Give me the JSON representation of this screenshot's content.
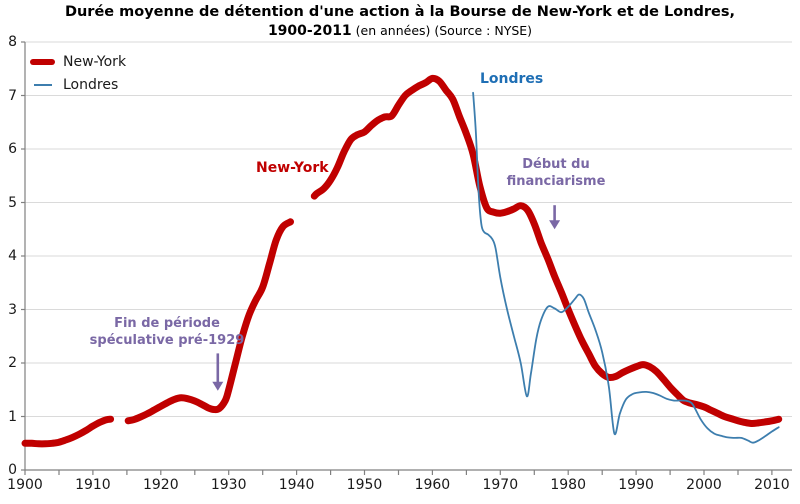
{
  "chart_data": {
    "type": "line",
    "title": "Durée moyenne de détention d'une action à la Bourse de New-York et de Londres,",
    "subtitle_bold": "1900-2011",
    "subtitle_rest": " (en années) (Source : NYSE)",
    "xlabel": "",
    "ylabel": "",
    "xlim": [
      1900,
      2011.5
    ],
    "ylim": [
      0,
      8
    ],
    "x_tick_interval": 5,
    "x_label_interval": 10,
    "grid": "horizontal-only",
    "legend_position": "top-left",
    "x_tick_labels": [
      "1900",
      "1910",
      "1920",
      "1930",
      "1940",
      "1950",
      "1960",
      "1970",
      "1980",
      "1990",
      "2000",
      "2010"
    ],
    "y_tick_labels": [
      "0",
      "1",
      "2",
      "3",
      "4",
      "5",
      "6",
      "7",
      "8"
    ],
    "colors": {
      "new_york": "#C00000",
      "londres_line": "#3D7EAE",
      "londres_label": "#1F6FB5",
      "annotation_purple": "#7A68A5",
      "grid": "#DADADA",
      "axis": "#808080",
      "tick_text": "#1A1A1A"
    },
    "series": [
      {
        "name": "New-York",
        "color": "#C00000",
        "stroke_width": 7,
        "segments": [
          [
            [
              1900,
              0.5
            ],
            [
              1901,
              0.5
            ],
            [
              1902,
              0.49
            ],
            [
              1903,
              0.49
            ],
            [
              1904,
              0.5
            ],
            [
              1905,
              0.52
            ],
            [
              1906,
              0.56
            ],
            [
              1907,
              0.61
            ],
            [
              1908,
              0.67
            ],
            [
              1909,
              0.74
            ],
            [
              1910,
              0.82
            ],
            [
              1911,
              0.89
            ],
            [
              1912,
              0.94
            ],
            [
              1912.6,
              0.95
            ]
          ],
          [
            [
              1915.2,
              0.92
            ],
            [
              1916,
              0.94
            ],
            [
              1917,
              0.99
            ],
            [
              1918,
              1.05
            ],
            [
              1919,
              1.12
            ],
            [
              1920,
              1.19
            ],
            [
              1921,
              1.26
            ],
            [
              1922,
              1.32
            ],
            [
              1923,
              1.35
            ],
            [
              1924,
              1.33
            ],
            [
              1925,
              1.29
            ],
            [
              1926,
              1.23
            ],
            [
              1927,
              1.16
            ],
            [
              1927.8,
              1.13
            ],
            [
              1928.6,
              1.15
            ],
            [
              1929.5,
              1.3
            ],
            [
              1930,
              1.5
            ],
            [
              1931,
              2.0
            ],
            [
              1932,
              2.5
            ],
            [
              1933,
              2.9
            ],
            [
              1934,
              3.18
            ],
            [
              1935,
              3.42
            ],
            [
              1936,
              3.85
            ],
            [
              1937,
              4.3
            ],
            [
              1938,
              4.55
            ],
            [
              1939.1,
              4.64
            ]
          ],
          [
            [
              1942.6,
              5.12
            ],
            [
              1943,
              5.17
            ],
            [
              1944,
              5.26
            ],
            [
              1945,
              5.42
            ],
            [
              1946,
              5.65
            ],
            [
              1947,
              5.95
            ],
            [
              1948,
              6.18
            ],
            [
              1949,
              6.27
            ],
            [
              1950,
              6.32
            ],
            [
              1951,
              6.44
            ],
            [
              1952,
              6.54
            ],
            [
              1953,
              6.6
            ],
            [
              1954,
              6.62
            ],
            [
              1955,
              6.82
            ],
            [
              1956,
              7.0
            ],
            [
              1957,
              7.1
            ],
            [
              1958,
              7.18
            ],
            [
              1959,
              7.24
            ],
            [
              1960,
              7.32
            ],
            [
              1961,
              7.27
            ],
            [
              1962,
              7.1
            ],
            [
              1963,
              6.93
            ],
            [
              1964,
              6.6
            ],
            [
              1965,
              6.28
            ],
            [
              1966,
              5.9
            ],
            [
              1967,
              5.3
            ],
            [
              1968,
              4.9
            ],
            [
              1969,
              4.82
            ],
            [
              1970,
              4.8
            ],
            [
              1971,
              4.83
            ],
            [
              1972,
              4.88
            ],
            [
              1973,
              4.94
            ],
            [
              1974,
              4.86
            ],
            [
              1975,
              4.6
            ],
            [
              1976,
              4.25
            ],
            [
              1977,
              3.95
            ],
            [
              1978,
              3.62
            ],
            [
              1979,
              3.32
            ],
            [
              1980,
              3.0
            ],
            [
              1981,
              2.7
            ],
            [
              1982,
              2.42
            ],
            [
              1983,
              2.18
            ],
            [
              1984,
              1.94
            ],
            [
              1985,
              1.8
            ],
            [
              1986,
              1.73
            ],
            [
              1987,
              1.75
            ],
            [
              1988,
              1.82
            ],
            [
              1989,
              1.88
            ],
            [
              1990,
              1.93
            ],
            [
              1991,
              1.97
            ],
            [
              1992,
              1.93
            ],
            [
              1993,
              1.84
            ],
            [
              1994,
              1.7
            ],
            [
              1995,
              1.55
            ],
            [
              1996,
              1.42
            ],
            [
              1997,
              1.3
            ],
            [
              1998,
              1.25
            ],
            [
              1999,
              1.22
            ],
            [
              2000,
              1.18
            ],
            [
              2001,
              1.12
            ],
            [
              2002,
              1.06
            ],
            [
              2003,
              1.0
            ],
            [
              2004,
              0.96
            ],
            [
              2005,
              0.92
            ],
            [
              2006,
              0.89
            ],
            [
              2007,
              0.87
            ],
            [
              2008,
              0.88
            ],
            [
              2009,
              0.9
            ],
            [
              2010,
              0.92
            ],
            [
              2011,
              0.95
            ]
          ]
        ]
      },
      {
        "name": "Londres",
        "color": "#3D7EAE",
        "stroke_width": 1.8,
        "segments": [
          [
            [
              1966,
              7.05
            ],
            [
              1966.4,
              6.3
            ],
            [
              1966.8,
              5.2
            ],
            [
              1967.2,
              4.6
            ],
            [
              1967.6,
              4.45
            ],
            [
              1968.2,
              4.4
            ],
            [
              1968.8,
              4.32
            ],
            [
              1969.3,
              4.15
            ],
            [
              1970,
              3.6
            ],
            [
              1971,
              3.0
            ],
            [
              1972,
              2.5
            ],
            [
              1973,
              2.0
            ],
            [
              1973.9,
              1.38
            ],
            [
              1974.5,
              1.8
            ],
            [
              1975.3,
              2.45
            ],
            [
              1976,
              2.8
            ],
            [
              1977,
              3.05
            ],
            [
              1978,
              3.02
            ],
            [
              1979,
              2.95
            ],
            [
              1980,
              3.05
            ],
            [
              1981,
              3.2
            ],
            [
              1981.6,
              3.28
            ],
            [
              1982.3,
              3.2
            ],
            [
              1983,
              2.95
            ],
            [
              1984,
              2.62
            ],
            [
              1985,
              2.2
            ],
            [
              1986,
              1.55
            ],
            [
              1986.8,
              0.68
            ],
            [
              1987.6,
              1.05
            ],
            [
              1988.5,
              1.32
            ],
            [
              1989.5,
              1.42
            ],
            [
              1990.5,
              1.45
            ],
            [
              1991.5,
              1.46
            ],
            [
              1992.5,
              1.44
            ],
            [
              1993.5,
              1.39
            ],
            [
              1994.5,
              1.33
            ],
            [
              1995.5,
              1.3
            ],
            [
              1996.5,
              1.3
            ],
            [
              1997.5,
              1.29
            ],
            [
              1998.3,
              1.23
            ],
            [
              1999.5,
              0.95
            ],
            [
              2000.5,
              0.78
            ],
            [
              2001.5,
              0.68
            ],
            [
              2002.5,
              0.64
            ],
            [
              2003.5,
              0.61
            ],
            [
              2004.5,
              0.6
            ],
            [
              2005.5,
              0.6
            ],
            [
              2006.5,
              0.55
            ],
            [
              2007.2,
              0.51
            ],
            [
              2008,
              0.55
            ],
            [
              2009,
              0.63
            ],
            [
              2010,
              0.72
            ],
            [
              2011,
              0.8
            ]
          ]
        ]
      }
    ],
    "series_labels": [
      {
        "text": "New-York",
        "color": "#C00000"
      },
      {
        "text": "Londres",
        "color": "#1F6FB5"
      }
    ],
    "annotations": [
      {
        "lines": [
          "Fin de période",
          "spéculative pré-1929"
        ],
        "arrow": {
          "year": 1928.4,
          "value_from": 2.18,
          "value_to": 1.48
        }
      },
      {
        "lines": [
          "Début du",
          "financiarisme"
        ],
        "arrow": {
          "year": 1978,
          "value_from": 4.95,
          "value_to": 4.5
        }
      }
    ]
  }
}
